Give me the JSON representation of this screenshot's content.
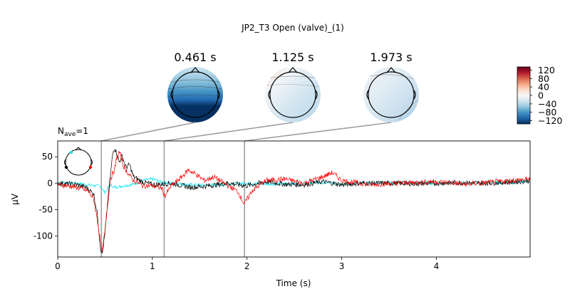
{
  "figure": {
    "title": "JP2_T3 Open (valve)_(1)",
    "nave_prefix": "N",
    "nave_subscript": "ave",
    "nave_suffix": "=1"
  },
  "chart_data": [
    {
      "type": "line",
      "xlabel": "Time (s)",
      "ylabel": "µV",
      "xlim": [
        0,
        4.99
      ],
      "ylim": [
        -140,
        80
      ],
      "xticks": [
        0,
        1,
        2,
        3,
        4
      ],
      "yticks": [
        50,
        0,
        -50,
        -100
      ],
      "grid": false,
      "legend": "none",
      "series": [
        {
          "color": "#00e5ee",
          "points": [
            [
              0,
              2
            ],
            [
              0.2,
              0
            ],
            [
              0.35,
              -4
            ],
            [
              0.45,
              -6
            ],
            [
              0.5,
              -18
            ],
            [
              0.55,
              -3
            ],
            [
              0.6,
              -8
            ],
            [
              0.7,
              -5
            ],
            [
              0.8,
              -2
            ],
            [
              0.9,
              5
            ],
            [
              1.0,
              8
            ],
            [
              1.1,
              2
            ],
            [
              1.2,
              0
            ],
            [
              1.4,
              -3
            ],
            [
              1.6,
              -4
            ],
            [
              1.8,
              -2
            ],
            [
              2.0,
              0
            ],
            [
              2.3,
              -2
            ],
            [
              2.6,
              0
            ],
            [
              2.8,
              1
            ],
            [
              3.0,
              -1
            ],
            [
              3.3,
              0
            ],
            [
              3.6,
              1
            ],
            [
              3.9,
              0
            ],
            [
              4.2,
              0
            ],
            [
              4.5,
              1
            ],
            [
              4.8,
              1
            ],
            [
              4.99,
              4
            ]
          ]
        },
        {
          "color": "#000000",
          "points": [
            [
              0,
              0
            ],
            [
              0.2,
              -3
            ],
            [
              0.3,
              -8
            ],
            [
              0.38,
              -20
            ],
            [
              0.42,
              -60
            ],
            [
              0.45,
              -120
            ],
            [
              0.47,
              -135
            ],
            [
              0.5,
              -95
            ],
            [
              0.53,
              -30
            ],
            [
              0.56,
              20
            ],
            [
              0.58,
              55
            ],
            [
              0.6,
              68
            ],
            [
              0.62,
              58
            ],
            [
              0.65,
              40
            ],
            [
              0.68,
              52
            ],
            [
              0.72,
              30
            ],
            [
              0.76,
              35
            ],
            [
              0.8,
              12
            ],
            [
              0.9,
              2
            ],
            [
              1.0,
              -3
            ],
            [
              1.1,
              -2
            ],
            [
              1.2,
              0
            ],
            [
              1.4,
              -8
            ],
            [
              1.6,
              -5
            ],
            [
              1.8,
              0
            ],
            [
              2.0,
              -5
            ],
            [
              2.2,
              3
            ],
            [
              2.4,
              -2
            ],
            [
              2.6,
              -3
            ],
            [
              2.8,
              3
            ],
            [
              3.0,
              -3
            ],
            [
              3.2,
              0
            ],
            [
              3.5,
              0
            ],
            [
              3.8,
              -1
            ],
            [
              4.2,
              1
            ],
            [
              4.5,
              0
            ],
            [
              4.8,
              2
            ],
            [
              4.99,
              5
            ]
          ]
        },
        {
          "color": "#ff0000",
          "points": [
            [
              0,
              -2
            ],
            [
              0.2,
              -8
            ],
            [
              0.32,
              -15
            ],
            [
              0.38,
              -30
            ],
            [
              0.42,
              -70
            ],
            [
              0.45,
              -110
            ],
            [
              0.47,
              -130
            ],
            [
              0.5,
              -90
            ],
            [
              0.53,
              -35
            ],
            [
              0.56,
              10
            ],
            [
              0.6,
              25
            ],
            [
              0.62,
              45
            ],
            [
              0.65,
              60
            ],
            [
              0.7,
              30
            ],
            [
              0.8,
              5
            ],
            [
              0.9,
              -5
            ],
            [
              1.0,
              -5
            ],
            [
              1.1,
              -10
            ],
            [
              1.13,
              -25
            ],
            [
              1.2,
              -5
            ],
            [
              1.3,
              10
            ],
            [
              1.38,
              25
            ],
            [
              1.45,
              18
            ],
            [
              1.55,
              5
            ],
            [
              1.65,
              12
            ],
            [
              1.8,
              -5
            ],
            [
              1.9,
              -15
            ],
            [
              1.97,
              -40
            ],
            [
              2.05,
              -15
            ],
            [
              2.2,
              5
            ],
            [
              2.4,
              8
            ],
            [
              2.6,
              0
            ],
            [
              2.8,
              12
            ],
            [
              2.9,
              20
            ],
            [
              3.0,
              5
            ],
            [
              3.3,
              -3
            ],
            [
              3.6,
              0
            ],
            [
              4.0,
              3
            ],
            [
              4.3,
              -2
            ],
            [
              4.6,
              2
            ],
            [
              4.99,
              8
            ]
          ]
        }
      ],
      "vlines": [
        0.461,
        1.125,
        1.973
      ]
    },
    {
      "type": "heatmap",
      "topomaps": [
        {
          "time_label": "0.461 s",
          "time": 0.461
        },
        {
          "time_label": "1.125 s",
          "time": 1.125
        },
        {
          "time_label": "1.973 s",
          "time": 1.973
        }
      ],
      "colorbar": {
        "ticks": [
          120,
          80,
          40,
          0,
          -40,
          -80,
          -120
        ],
        "range": [
          -135,
          135
        ],
        "colors": [
          "#053061",
          "#2166ac",
          "#4393c3",
          "#92c5de",
          "#d1e5f0",
          "#f7f7f7",
          "#fddbc7",
          "#f4a582",
          "#d6604d",
          "#b2182b",
          "#67001f"
        ]
      }
    }
  ],
  "colors": {
    "axis": "#000000",
    "connector": "#a0a0a0",
    "sensor_left": "#00e5ee",
    "sensor_right": "#ff0000",
    "sensor_mid": "#000000"
  }
}
